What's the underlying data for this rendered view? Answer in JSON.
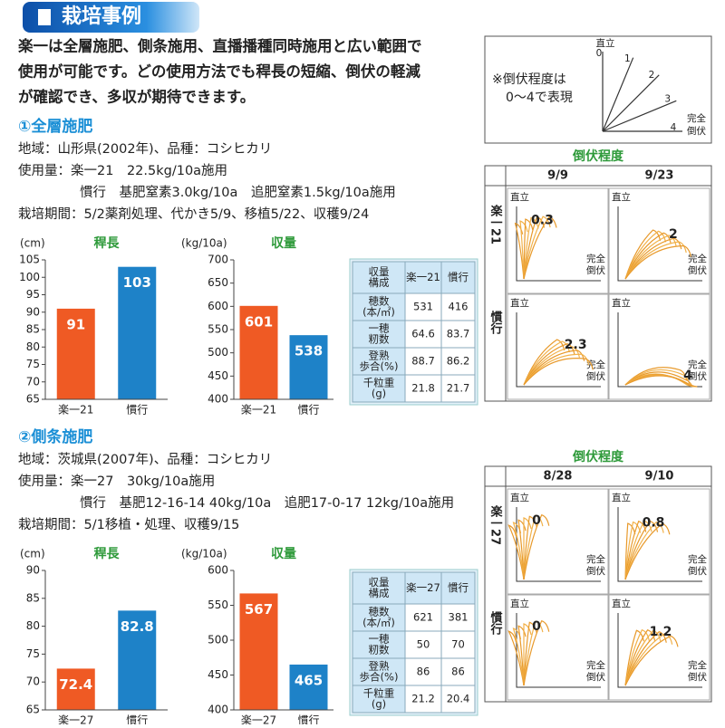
{
  "title": "栽培事例",
  "intro": [
    "楽一は全層施肥、側条施用、直播播種同時施用と広い範囲で",
    "使用が可能です。どの使用方法でも稈長の短縮、倒伏の軽減",
    "が確認でき、多収が期待できます。"
  ],
  "lodging_scale": {
    "note": [
      "※倒伏程度は",
      "0〜4で表現"
    ],
    "upright": "直立",
    "levels": [
      0,
      1,
      2,
      3,
      4
    ],
    "flat": [
      "完全",
      "倒伏"
    ]
  },
  "sections": [
    {
      "heading": "①全層施肥",
      "info": [
        "地域：山形県(2002年)、品種：コシヒカリ",
        "使用量：楽一21　22.5kg/10a施用",
        "慣行　基肥窒素3.0kg/10a　追肥窒素1.5kg/10a施用",
        "栽培期間：5/2薬剤処理、代かき5/9、移植5/22、収穫9/24"
      ],
      "table": {
        "header": [
          [
            "収量",
            "構成"
          ],
          "楽一21",
          "慣行"
        ],
        "rows": [
          {
            "label": [
              "穂数",
              "(本/㎡)"
            ],
            "values": [
              531,
              416
            ]
          },
          {
            "label": [
              "一穂",
              "籾数"
            ],
            "values": [
              64.6,
              83.7
            ]
          },
          {
            "label": [
              "登熟",
              "歩合(%)"
            ],
            "values": [
              88.7,
              86.2
            ]
          },
          {
            "label": [
              "千粒重",
              "(g)"
            ],
            "values": [
              21.8,
              21.7
            ]
          }
        ]
      },
      "lodging": {
        "title": "倒伏程度",
        "dates": [
          "9/9",
          "9/23"
        ],
        "upright": "直立",
        "flat": [
          "完全",
          "倒伏"
        ],
        "rows": [
          {
            "label": "楽一21",
            "values": [
              0.3,
              2
            ]
          },
          {
            "label": "慣行",
            "values": [
              2.3,
              4
            ]
          }
        ]
      }
    },
    {
      "heading": "②側条施肥",
      "info": [
        "地域：茨城県(2007年)、品種：コシヒカリ",
        "使用量：楽一27　30kg/10a施用",
        "慣行　基肥12-16-14 40kg/10a　追肥17-0-17 12kg/10a施用",
        "栽培期間：5/1移植・処理、収穫9/15"
      ],
      "table": {
        "header": [
          [
            "収量",
            "構成"
          ],
          "楽一27",
          "慣行"
        ],
        "rows": [
          {
            "label": [
              "穂数",
              "(本/㎡)"
            ],
            "values": [
              621,
              381
            ]
          },
          {
            "label": [
              "一穂",
              "籾数"
            ],
            "values": [
              50,
              70
            ]
          },
          {
            "label": [
              "登熟",
              "歩合(%)"
            ],
            "values": [
              86,
              86
            ]
          },
          {
            "label": [
              "千粒重",
              "(g)"
            ],
            "values": [
              21.2,
              20.4
            ]
          }
        ]
      },
      "lodging": {
        "title": "倒伏程度",
        "dates": [
          "8/28",
          "9/10"
        ],
        "upright": "直立",
        "flat": [
          "完全",
          "倒伏"
        ],
        "rows": [
          {
            "label": "楽一27",
            "values": [
              0,
              0.8
            ]
          },
          {
            "label": "慣行",
            "values": [
              0,
              1.2
            ]
          }
        ]
      }
    }
  ],
  "chart_data": [
    {
      "type": "bar",
      "title": "稈長",
      "y_label": "(cm)",
      "categories": [
        "楽一21",
        "慣行"
      ],
      "values": [
        91,
        103
      ],
      "colors": [
        "#ef5a24",
        "#1e82c8"
      ],
      "ylim": [
        65,
        105
      ],
      "yticks": [
        65,
        70,
        75,
        80,
        85,
        90,
        95,
        100,
        105
      ]
    },
    {
      "type": "bar",
      "title": "収量",
      "y_label": "(kg/10a)",
      "categories": [
        "楽一21",
        "慣行"
      ],
      "values": [
        601,
        538
      ],
      "colors": [
        "#ef5a24",
        "#1e82c8"
      ],
      "ylim": [
        400,
        700
      ],
      "yticks": [
        400,
        450,
        500,
        550,
        600,
        650,
        700
      ]
    },
    {
      "type": "bar",
      "title": "稈長",
      "y_label": "(cm)",
      "categories": [
        "楽一27",
        "慣行"
      ],
      "values": [
        72.4,
        82.8
      ],
      "colors": [
        "#ef5a24",
        "#1e82c8"
      ],
      "ylim": [
        65,
        90
      ],
      "yticks": [
        65,
        70,
        75,
        80,
        85,
        90
      ]
    },
    {
      "type": "bar",
      "title": "収量",
      "y_label": "(kg/10a)",
      "categories": [
        "楽一27",
        "慣行"
      ],
      "values": [
        567,
        465
      ],
      "colors": [
        "#ef5a24",
        "#1e82c8"
      ],
      "ylim": [
        400,
        600
      ],
      "yticks": [
        400,
        450,
        500,
        550,
        600
      ]
    }
  ]
}
